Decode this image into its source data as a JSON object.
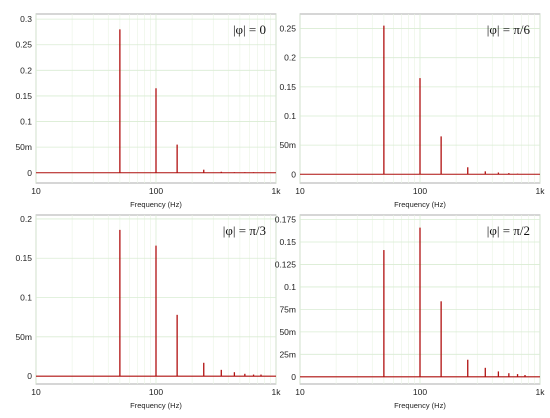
{
  "chart_data": [
    {
      "type": "line",
      "annotation": "|φ| = 0",
      "xlabel": "Frequency (Hz)",
      "ylabel": "",
      "xscale": "log",
      "xlim": [
        10,
        1000
      ],
      "xticks": [
        10,
        100,
        1000
      ],
      "xtick_labels": [
        "10",
        "100",
        "1k"
      ],
      "ylim": [
        -0.02,
        0.31
      ],
      "yticks": [
        0,
        0.05,
        0.1,
        0.15,
        0.2,
        0.25,
        0.3
      ],
      "ytick_labels": [
        "0",
        "50m",
        "0.1",
        "0.15",
        "0.2",
        "0.25",
        "0.3"
      ],
      "grid": true,
      "line_color": "#b01010",
      "x": [
        50,
        100,
        150,
        250,
        350,
        450,
        550,
        650
      ],
      "values": [
        0.28,
        0.165,
        0.055,
        0.006,
        0.002,
        0.001,
        0.001,
        0.001
      ]
    },
    {
      "type": "line",
      "annotation": "|φ| = π/6",
      "xlabel": "Frequency (Hz)",
      "ylabel": "",
      "xscale": "log",
      "xlim": [
        10,
        1000
      ],
      "xticks": [
        10,
        100,
        1000
      ],
      "xtick_labels": [
        "10",
        "100",
        "1k"
      ],
      "ylim": [
        -0.015,
        0.275
      ],
      "yticks": [
        0,
        0.05,
        0.1,
        0.15,
        0.2,
        0.25
      ],
      "ytick_labels": [
        "0",
        "50m",
        "0.1",
        "0.15",
        "0.2",
        "0.25"
      ],
      "grid": true,
      "line_color": "#b01010",
      "x": [
        50,
        100,
        150,
        250,
        350,
        450,
        550,
        650
      ],
      "values": [
        0.255,
        0.165,
        0.065,
        0.012,
        0.005,
        0.003,
        0.002,
        0.001
      ]
    },
    {
      "type": "line",
      "annotation": "|φ| = π/3",
      "xlabel": "Frequency (Hz)",
      "ylabel": "",
      "xscale": "log",
      "xlim": [
        10,
        1000
      ],
      "xticks": [
        10,
        100,
        1000
      ],
      "xtick_labels": [
        "10",
        "100",
        "1k"
      ],
      "ylim": [
        -0.01,
        0.205
      ],
      "yticks": [
        0,
        0.05,
        0.1,
        0.15,
        0.2
      ],
      "ytick_labels": [
        "0",
        "50m",
        "0.1",
        "0.15",
        "0.2"
      ],
      "grid": true,
      "line_color": "#b01010",
      "x": [
        50,
        100,
        150,
        250,
        350,
        450,
        550,
        650,
        750
      ],
      "values": [
        0.186,
        0.166,
        0.078,
        0.017,
        0.008,
        0.005,
        0.003,
        0.002,
        0.002
      ]
    },
    {
      "type": "line",
      "annotation": "|φ| = π/2",
      "xlabel": "Frequency (Hz)",
      "ylabel": "",
      "xscale": "log",
      "xlim": [
        10,
        1000
      ],
      "xticks": [
        10,
        100,
        1000
      ],
      "xtick_labels": [
        "10",
        "100",
        "1k"
      ],
      "ylim": [
        -0.008,
        0.18
      ],
      "yticks": [
        0,
        0.025,
        0.05,
        0.075,
        0.1,
        0.125,
        0.15,
        0.175
      ],
      "ytick_labels": [
        "0",
        "25m",
        "50m",
        "75m",
        "0.1",
        "0.125",
        "0.15",
        "0.175"
      ],
      "grid": true,
      "line_color": "#b01010",
      "x": [
        50,
        100,
        150,
        250,
        350,
        450,
        550,
        650,
        750
      ],
      "values": [
        0.141,
        0.166,
        0.084,
        0.019,
        0.01,
        0.006,
        0.004,
        0.003,
        0.002
      ]
    }
  ]
}
